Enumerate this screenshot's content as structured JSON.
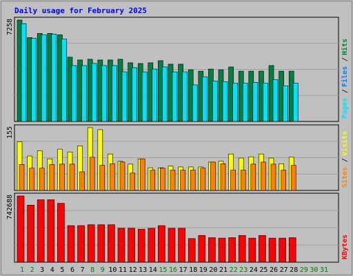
{
  "chart_data": {
    "title": "Daily usage for February 2025",
    "days": [
      1,
      2,
      3,
      4,
      5,
      6,
      7,
      8,
      9,
      10,
      11,
      12,
      13,
      14,
      15,
      16,
      17,
      18,
      19,
      20,
      21,
      22,
      23,
      24,
      25,
      26,
      27,
      28,
      29,
      30,
      31
    ],
    "weekend_days": [
      1,
      2,
      8,
      9,
      15,
      16,
      22,
      23
    ],
    "future_days": [
      29,
      30,
      31
    ],
    "panels": [
      {
        "type": "bar",
        "max_label": "7258",
        "max": 7258,
        "series": [
          {
            "name": "Hits",
            "color": "#008040",
            "values": [
              7258,
              6000,
              6300,
              6300,
              6200,
              4600,
              4400,
              4450,
              4400,
              4400,
              4450,
              4200,
              4150,
              4200,
              4350,
              4100,
              4100,
              3700,
              3600,
              3750,
              3700,
              3900,
              3600,
              3600,
              3600,
              4000,
              3600,
              3600,
              0,
              0,
              0
            ]
          },
          {
            "name": "Files",
            "color": "#0080ff",
            "values": [
              0,
              0,
              0,
              0,
              0,
              0,
              0,
              0,
              0,
              0,
              0,
              0,
              0,
              0,
              0,
              0,
              0,
              0,
              0,
              0,
              0,
              0,
              0,
              0,
              0,
              0,
              0,
              0,
              0,
              0,
              0
            ]
          },
          {
            "name": "Pages",
            "color": "#00e0ff",
            "values": [
              7000,
              5950,
              6200,
              6250,
              5900,
              4000,
              4000,
              4150,
              4000,
              4000,
              3550,
              3850,
              3550,
              3750,
              3900,
              3550,
              3550,
              2620,
              3200,
              2900,
              2850,
              2750,
              2750,
              2800,
              2750,
              3000,
              2550,
              2750,
              0,
              0,
              0
            ]
          }
        ],
        "legend": [
          "Pages",
          "Files",
          "Hits"
        ]
      },
      {
        "type": "bar",
        "max_label": "155",
        "max": 155,
        "series": [
          {
            "name": "Visits",
            "color": "#ffff00",
            "values": [
              120,
              85,
              98,
              78,
              102,
              95,
              110,
              155,
              150,
              90,
              72,
              65,
              78,
              56,
              56,
              60,
              58,
              58,
              58,
              70,
              72,
              90,
              80,
              83,
              90,
              80,
              66,
              82,
              0,
              0,
              0
            ]
          },
          {
            "name": "Sites",
            "color": "#ff8000",
            "values": [
              64,
              55,
              55,
              64,
              65,
              65,
              46,
              82,
              62,
              66,
              70,
              43,
              78,
              50,
              55,
              50,
              50,
              50,
              55,
              70,
              66,
              50,
              50,
              65,
              70,
              65,
              50,
              62,
              0,
              0,
              0
            ]
          }
        ],
        "legend": [
          "Sites",
          "Visits"
        ]
      },
      {
        "type": "bar",
        "max_label": "742688",
        "max": 742688,
        "series": [
          {
            "name": "KBytes",
            "color": "#ff0000",
            "values": [
              742688,
              640000,
              700000,
              700000,
              660000,
              410000,
              410000,
              420000,
              420000,
              420000,
              380000,
              380000,
              370000,
              380000,
              410000,
              380000,
              380000,
              265000,
              300000,
              275000,
              270000,
              275000,
              300000,
              270000,
              300000,
              270000,
              270000,
              275000,
              0,
              0,
              0
            ]
          }
        ],
        "legend": [
          "KBytes"
        ]
      }
    ]
  }
}
